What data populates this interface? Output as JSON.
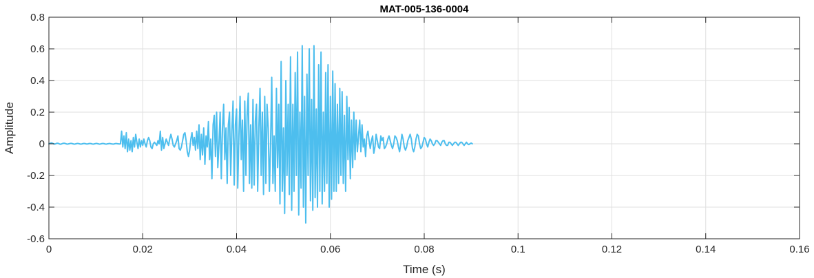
{
  "chart_data": {
    "type": "line",
    "title": "MAT-005-136-0004",
    "xlabel": "Time (s)",
    "ylabel": "Amplitude",
    "xlim": [
      0,
      0.16
    ],
    "ylim": [
      -0.6,
      0.8
    ],
    "xticks": [
      0,
      0.02,
      0.04,
      0.06,
      0.08,
      0.1,
      0.12,
      0.14,
      0.16
    ],
    "xtick_labels": [
      "0",
      "0.02",
      "0.04",
      "0.06",
      "0.08",
      "0.1",
      "0.12",
      "0.14",
      "0.16"
    ],
    "yticks": [
      -0.6,
      -0.4,
      -0.2,
      0,
      0.2,
      0.4,
      0.6,
      0.8
    ],
    "ytick_labels": [
      "-0.6",
      "-0.4",
      "-0.2",
      "0",
      "0.2",
      "0.4",
      "0.6",
      "0.8"
    ],
    "grid": true,
    "series": [
      {
        "color": "#4DBEEE",
        "x_start": 0,
        "x_step": 0.00025,
        "values": [
          0.0,
          0.003,
          0.006,
          0.004,
          0.0,
          -0.002,
          0.001,
          0.004,
          0.003,
          -0.001,
          -0.003,
          0.0,
          0.003,
          0.004,
          0.002,
          -0.001,
          -0.002,
          0.0,
          0.002,
          0.003,
          0.001,
          -0.001,
          -0.002,
          0.0,
          0.002,
          0.002,
          0.0,
          -0.002,
          -0.001,
          0.001,
          0.002,
          0.001,
          -0.001,
          -0.001,
          0.001,
          0.002,
          0.001,
          -0.001,
          -0.002,
          0.0,
          0.002,
          0.002,
          0.0,
          -0.002,
          -0.001,
          0.001,
          0.002,
          0.001,
          -0.001,
          -0.002,
          0.0,
          0.001,
          0.002,
          0.0,
          -0.001,
          -0.002,
          0.0,
          0.002,
          0.001,
          0.0,
          -0.001,
          0.0,
          0.08,
          -0.02,
          0.05,
          -0.03,
          0.07,
          -0.05,
          0.03,
          -0.04,
          0.02,
          -0.05,
          0.04,
          -0.02,
          0.06,
          0.01,
          -0.03,
          0.03,
          -0.02,
          0.02,
          -0.01,
          0.03,
          0.0,
          -0.02,
          0.02,
          0.04,
          0.02,
          -0.02,
          -0.03,
          0.0,
          0.01,
          0.0,
          -0.01,
          0.02,
          0.0,
          0.08,
          -0.04,
          0.04,
          -0.03,
          0.0,
          0.03,
          0.01,
          -0.01,
          0.03,
          0.06,
          0.03,
          -0.01,
          -0.02,
          0.0,
          0.02,
          0.05,
          -0.03,
          -0.04,
          -0.02,
          0.02,
          0.06,
          0.07,
          0.02,
          -0.05,
          -0.08,
          -0.04,
          0.03,
          0.07,
          -0.01,
          0.04,
          -0.04,
          0.08,
          -0.03,
          0.12,
          -0.1,
          0.06,
          -0.07,
          0.1,
          -0.13,
          0.05,
          -0.02,
          0.14,
          -0.1,
          0.03,
          -0.22,
          0.12,
          0.18,
          -0.08,
          0.2,
          -0.15,
          0.0,
          0.2,
          -0.22,
          0.1,
          0.25,
          -0.1,
          0.1,
          -0.25,
          0.12,
          0.2,
          -0.2,
          0.08,
          0.27,
          -0.26,
          0.12,
          0.22,
          -0.28,
          0.05,
          0.3,
          -0.1,
          0.15,
          -0.3,
          0.27,
          -0.2,
          0.18,
          0.32,
          -0.25,
          0.12,
          -0.28,
          0.28,
          -0.26,
          0.14,
          0.25,
          -0.3,
          0.1,
          0.35,
          -0.2,
          0.2,
          -0.32,
          0.3,
          -0.25,
          0.25,
          0.1,
          -0.3,
          0.0,
          0.42,
          -0.25,
          0.05,
          -0.3,
          0.35,
          -0.15,
          0.25,
          -0.38,
          0.52,
          -0.3,
          0.1,
          -0.44,
          0.4,
          -0.2,
          0.25,
          -0.32,
          0.55,
          -0.42,
          0.25,
          -0.3,
          0.45,
          -0.2,
          0.58,
          -0.45,
          0.2,
          -0.28,
          0.62,
          -0.4,
          0.3,
          -0.5,
          0.44,
          -0.2,
          0.6,
          -0.36,
          0.28,
          -0.42,
          0.62,
          -0.34,
          0.22,
          -0.4,
          0.5,
          -0.3,
          0.58,
          -0.38,
          0.2,
          -0.3,
          0.45,
          -0.25,
          0.5,
          -0.4,
          0.3,
          -0.35,
          0.46,
          -0.3,
          0.38,
          -0.3,
          0.25,
          -0.25,
          0.35,
          -0.2,
          0.33,
          -0.25,
          0.18,
          -0.3,
          0.3,
          -0.1,
          0.23,
          -0.22,
          0.15,
          -0.15,
          0.2,
          -0.1,
          0.15,
          -0.05,
          0.05,
          0.15,
          -0.05,
          0.12,
          -0.02,
          0.03,
          -0.08,
          0.05,
          0.08,
          0.02,
          -0.03,
          0.02,
          0.05,
          -0.06,
          -0.02,
          0.06,
          0.02,
          -0.02,
          -0.03,
          0.05,
          0.02,
          0.04,
          -0.03,
          -0.02,
          0.0,
          0.03,
          0.05,
          0.02,
          -0.01,
          -0.03,
          0.0,
          0.05,
          0.04,
          0.02,
          -0.02,
          -0.05,
          0.0,
          0.06,
          0.03,
          -0.02,
          -0.04,
          -0.02,
          0.02,
          0.04,
          0.06,
          0.03,
          -0.03,
          -0.05,
          -0.02,
          0.03,
          0.06,
          0.05,
          0.0,
          -0.03,
          -0.02,
          0.01,
          0.04,
          0.03,
          0.0,
          -0.02,
          0.01,
          0.03,
          0.02,
          0.0,
          -0.01,
          0.0,
          0.02,
          0.02,
          0.01,
          0.0,
          -0.01,
          0.01,
          0.02,
          0.02,
          0.0,
          -0.01,
          -0.01,
          0.01,
          0.01,
          0.0,
          -0.01,
          0.0,
          0.01,
          0.01,
          0.0,
          -0.01,
          0.0,
          0.01,
          0.01,
          0.0,
          -0.01,
          0.0,
          0.01,
          0.0,
          -0.005,
          0.0,
          0.005,
          0.0
        ]
      }
    ]
  }
}
